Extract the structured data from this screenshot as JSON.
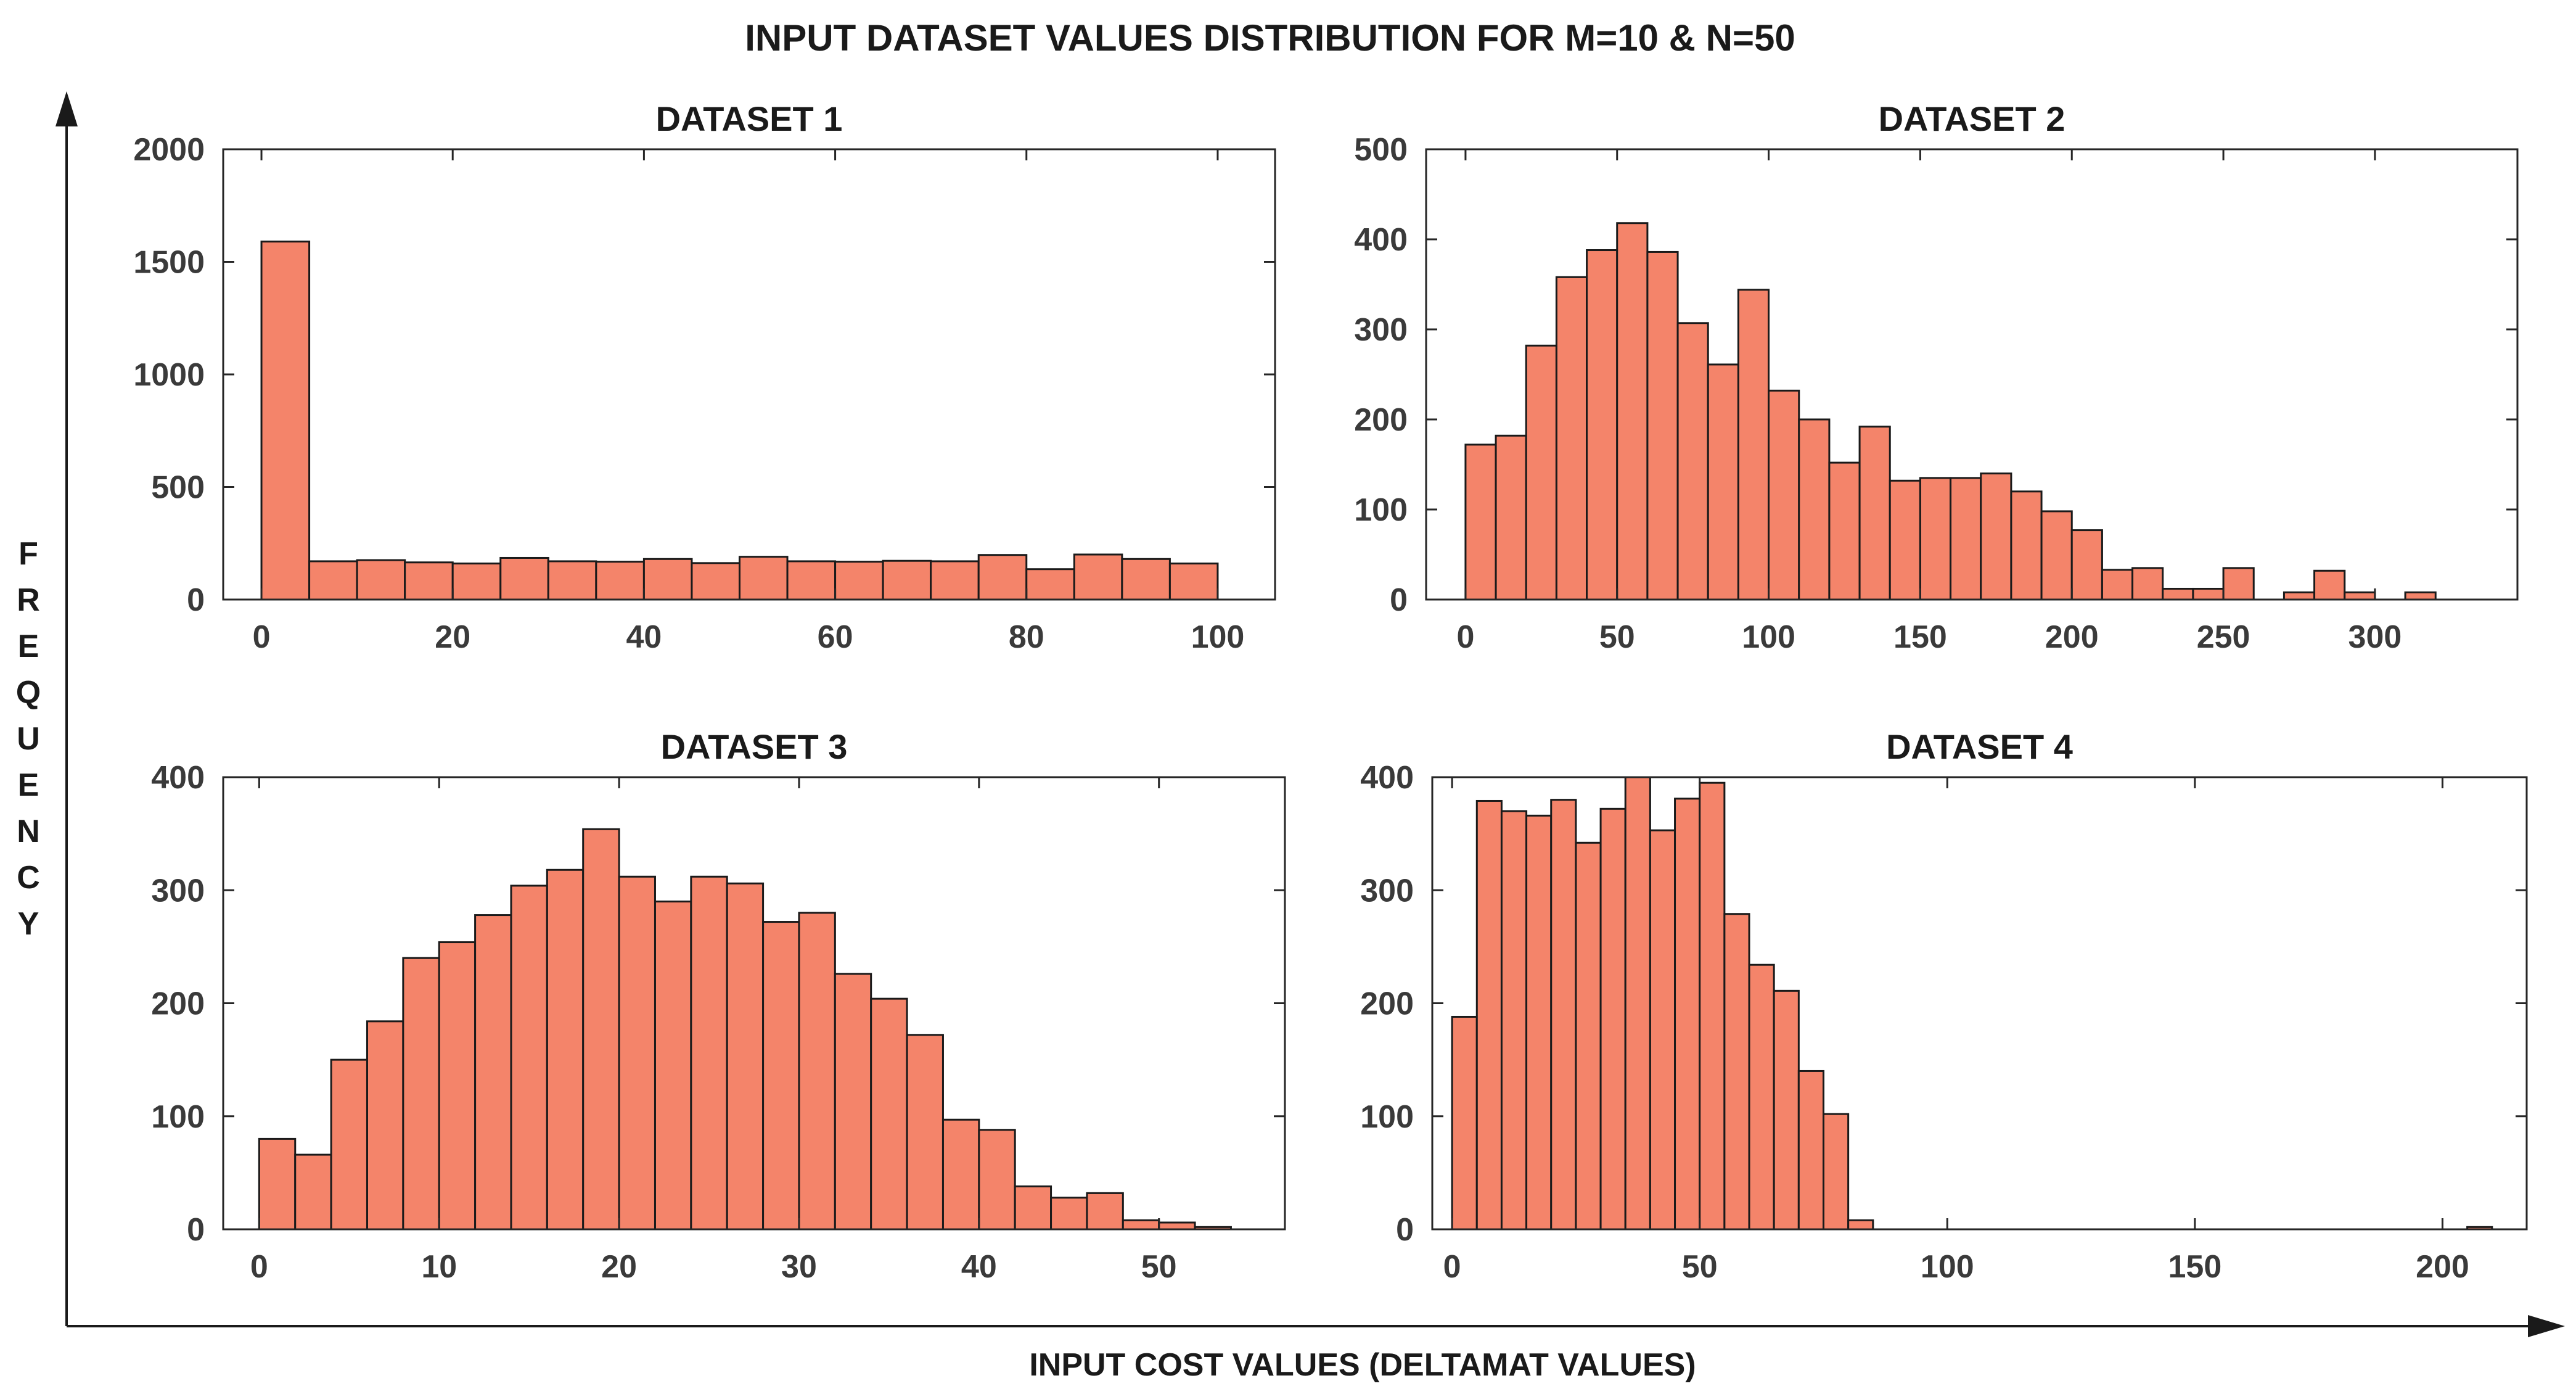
{
  "title": "INPUT DATASET VALUES DISTRIBUTION FOR M=10 & N=50",
  "xlabel": "INPUT COST VALUES (DELTAMAT VALUES)",
  "ylabel": "FREQUENCY",
  "colors": {
    "bar_fill": "#f4846a",
    "bar_edge": "#1a1a1a",
    "text": "#262626"
  },
  "chart_data": [
    {
      "type": "bar",
      "title": "DATASET 1",
      "xlim": [
        -4,
        106
      ],
      "ylim": [
        0,
        2000
      ],
      "xticks": [
        0,
        20,
        40,
        60,
        80,
        100
      ],
      "yticks": [
        0,
        500,
        1000,
        1500,
        2000
      ],
      "bin_start": 0,
      "bin_width": 5,
      "values": [
        1590,
        170,
        175,
        165,
        160,
        185,
        170,
        168,
        180,
        162,
        190,
        170,
        168,
        172,
        170,
        198,
        135,
        200,
        180,
        160
      ]
    },
    {
      "type": "bar",
      "title": "DATASET 2",
      "xlim": [
        -13,
        347
      ],
      "ylim": [
        0,
        500
      ],
      "xticks": [
        0,
        50,
        100,
        150,
        200,
        250,
        300
      ],
      "yticks": [
        0,
        100,
        200,
        300,
        400,
        500
      ],
      "bin_start": 0,
      "bin_width": 10,
      "values": [
        172,
        182,
        282,
        358,
        388,
        418,
        386,
        307,
        261,
        344,
        232,
        200,
        152,
        192,
        132,
        135,
        135,
        140,
        120,
        98,
        77,
        33,
        35,
        12,
        12,
        35,
        0,
        8,
        32,
        8,
        0,
        8
      ]
    },
    {
      "type": "bar",
      "title": "DATASET 3",
      "xlim": [
        -2,
        57
      ],
      "ylim": [
        0,
        400
      ],
      "xticks": [
        0,
        10,
        20,
        30,
        40,
        50
      ],
      "yticks": [
        0,
        100,
        200,
        300,
        400
      ],
      "bin_start": 0,
      "bin_width": 2,
      "values": [
        80,
        66,
        150,
        184,
        240,
        254,
        278,
        304,
        318,
        354,
        312,
        290,
        312,
        306,
        272,
        280,
        226,
        204,
        172,
        97,
        88,
        38,
        28,
        32,
        8,
        6,
        2
      ]
    },
    {
      "type": "bar",
      "title": "DATASET 4",
      "xlim": [
        -4,
        217
      ],
      "ylim": [
        0,
        400
      ],
      "xticks": [
        0,
        50,
        100,
        150,
        200
      ],
      "yticks": [
        0,
        100,
        200,
        300,
        400
      ],
      "bin_start": 0,
      "bin_width": 5,
      "values": [
        188,
        379,
        370,
        366,
        380,
        342,
        372,
        400,
        353,
        381,
        395,
        279,
        234,
        211,
        140,
        102,
        8,
        0,
        0,
        0,
        0,
        0,
        0,
        0,
        0,
        0,
        0,
        0,
        0,
        0,
        0,
        0,
        0,
        0,
        0,
        0,
        0,
        0,
        0,
        0,
        0,
        2
      ]
    }
  ]
}
